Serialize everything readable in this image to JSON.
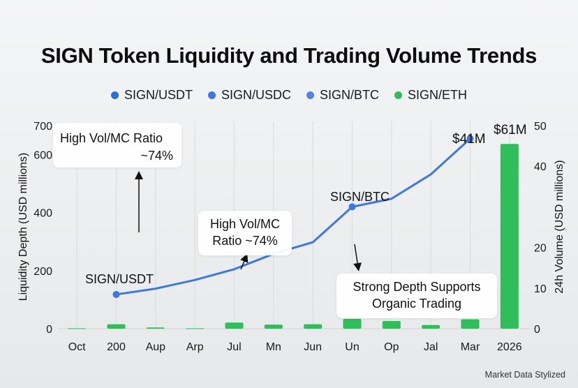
{
  "chart_data": {
    "type": "bar+line",
    "title": "SIGN Token Liquidity and Trading Volume Trends",
    "legend": [
      {
        "name": "SIGN/USDT",
        "color": "#2a6fe0"
      },
      {
        "name": "SIGN/USDC",
        "color": "#3b78e7"
      },
      {
        "name": "SIGN/BTC",
        "color": "#4a86ea"
      },
      {
        "name": "SIGN/ETH",
        "color": "#2fbe5a"
      }
    ],
    "categories": [
      "Oct",
      "200",
      "Aup",
      "Arp",
      "Jul",
      "Mn",
      "Jun",
      "Un",
      "Op",
      "Jal",
      "Mar",
      "2026"
    ],
    "y_left": {
      "label": "Liquidity Depth (USD millions)",
      "ylim": [
        0,
        700
      ],
      "ticks": [
        "0",
        "200",
        "400",
        "600",
        "700"
      ],
      "tick_values": [
        0,
        200,
        400,
        600,
        700
      ]
    },
    "y_right": {
      "label": "24h Volume  (USD millions)",
      "ylim": [
        0,
        50
      ],
      "ticks": [
        "0",
        "10",
        "20",
        "40",
        "50"
      ],
      "tick_values": [
        0,
        10,
        20,
        40,
        50
      ]
    },
    "line": {
      "name": "Liquidity Depth",
      "color": "#3b78e7",
      "points": [
        {
          "cat": 1,
          "value": 118,
          "marker": true
        },
        {
          "cat": 2,
          "value": 138
        },
        {
          "cat": 3,
          "value": 168
        },
        {
          "cat": 4,
          "value": 205
        },
        {
          "cat": 5,
          "value": 258
        },
        {
          "cat": 6,
          "value": 298
        },
        {
          "cat": 7,
          "value": 420,
          "marker": true
        },
        {
          "cat": 8,
          "value": 448
        },
        {
          "cat": 9,
          "value": 532
        },
        {
          "cat": 10,
          "value": 655,
          "marker": true
        }
      ]
    },
    "bars": {
      "name": "24h Volume",
      "color": "#2fbe5a",
      "values": [
        0.1,
        1.1,
        0.3,
        0.1,
        1.5,
        1.0,
        1.1,
        2.4,
        1.9,
        0.9,
        2.3,
        45.5
      ]
    },
    "point_labels": [
      {
        "text": "SIGN/USDT"
      },
      {
        "text": "SIGN/BTC"
      },
      {
        "text": "$41M"
      },
      {
        "text": "$61M"
      }
    ],
    "annotations": [
      {
        "line1": "High Vol/MC Ratio",
        "line2": "~74%"
      },
      {
        "line1": "High Vol/MC",
        "line2": "Ratio ~74%"
      },
      {
        "line1": "Strong Depth Supports",
        "line2": "Organic Trading"
      }
    ]
  },
  "footer": "Market Data Stylized"
}
